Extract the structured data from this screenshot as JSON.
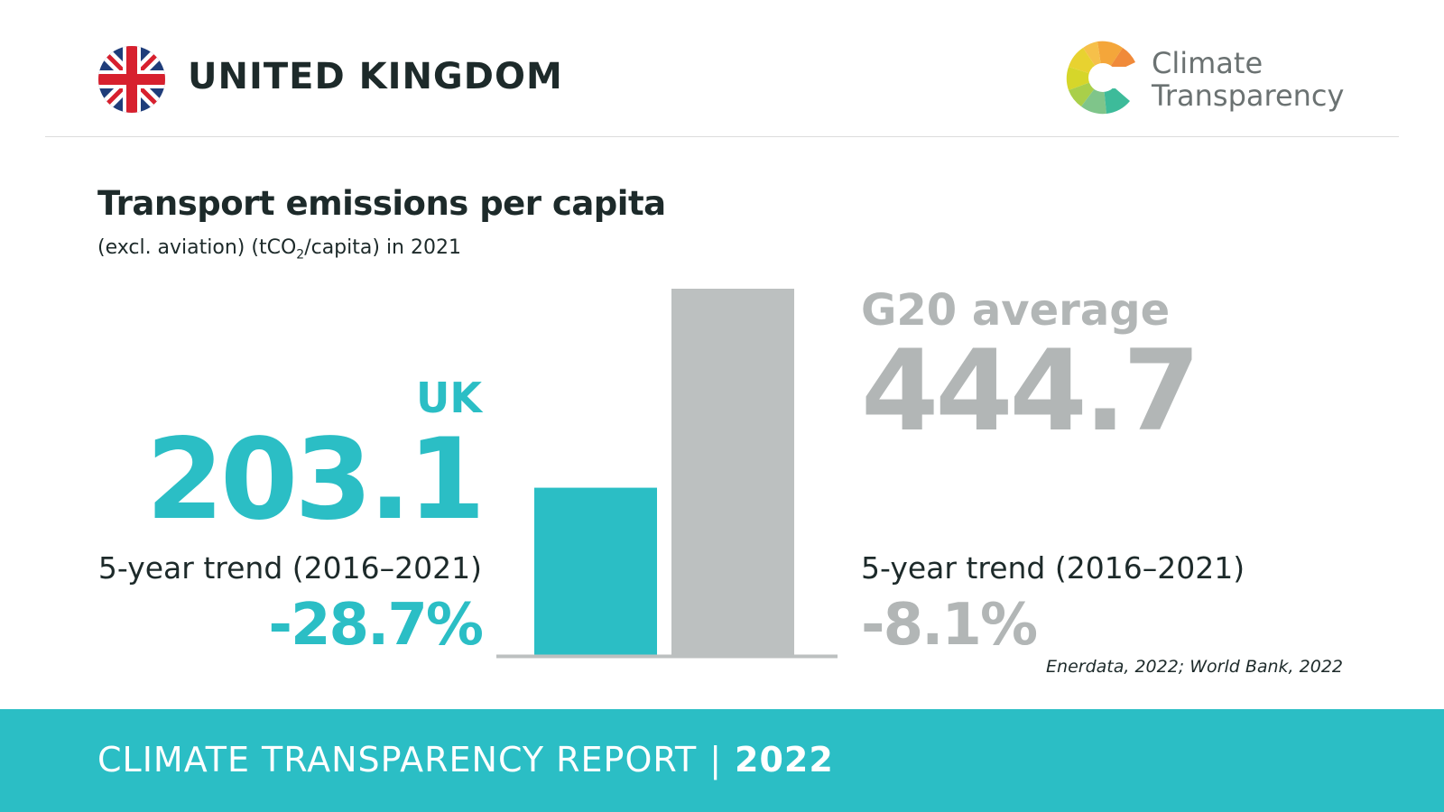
{
  "header": {
    "country": "UNITED KINGDOM",
    "flag_icon": "uk-flag-icon",
    "logo_line1": "Climate",
    "logo_line2": "Transparency"
  },
  "colors": {
    "uk": "#2bbec5",
    "g20": "#bcc0c0",
    "footer": "#2bbec5"
  },
  "chart_data": {
    "type": "bar",
    "title": "Transport emissions per capita",
    "subtitle_pre": "(excl. aviation) (tCO",
    "subtitle_sub": "2",
    "subtitle_post": "/capita) in 2021",
    "categories": [
      "UK",
      "G20 average"
    ],
    "values": [
      203.1,
      444.7
    ],
    "colors": [
      "#2bbec5",
      "#bcc0c0"
    ],
    "ylim": [
      0,
      444.7
    ],
    "uk": {
      "label": "UK",
      "value": "203.1",
      "trend_label": "5-year trend (2016–2021)",
      "trend_value": "-28.7%"
    },
    "g20": {
      "label": "G20 average",
      "value": "444.7",
      "trend_label": "5-year trend (2016–2021)",
      "trend_value": "-8.1%"
    },
    "source": "Enerdata, 2022; World Bank, 2022"
  },
  "footer": {
    "report": "CLIMATE TRANSPARENCY REPORT",
    "separator": "|",
    "year": "2022"
  }
}
